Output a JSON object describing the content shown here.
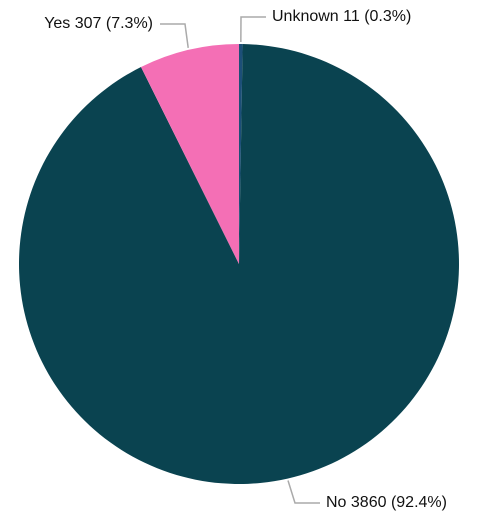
{
  "chart_data": {
    "type": "pie",
    "values": [
      11,
      3860,
      307
    ],
    "value_labels": [
      "Unknown 11 (0.3%)",
      "No 3860 (92.4%)",
      "Yes 307 (7.3%)"
    ],
    "colors": [
      "#1d4f78",
      "#0a4350",
      "#f46fb5"
    ]
  }
}
